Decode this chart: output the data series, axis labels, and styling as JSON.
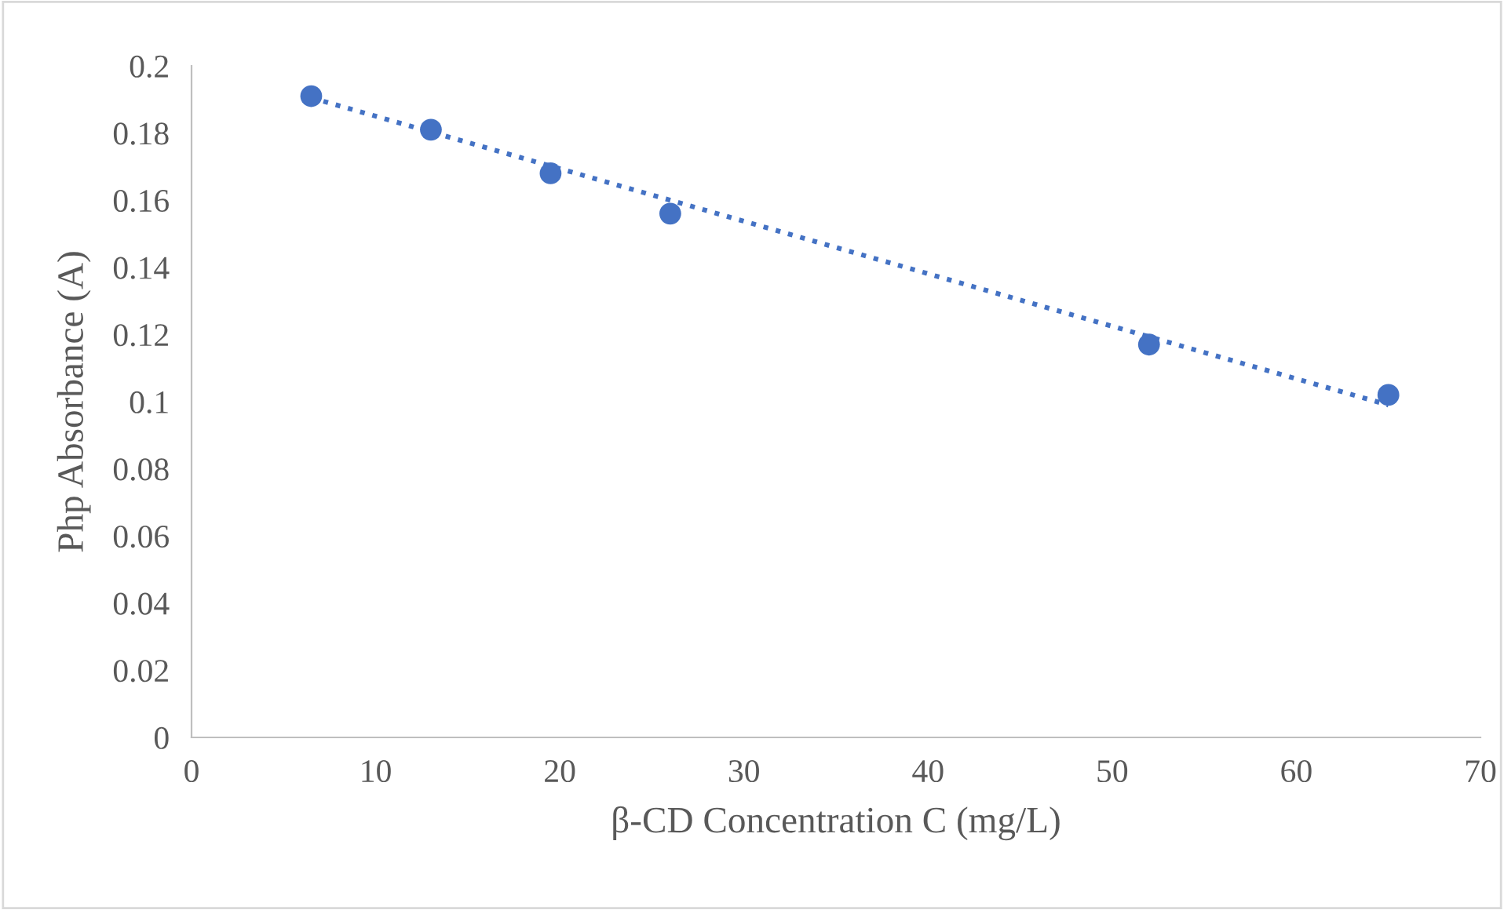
{
  "chart_data": {
    "type": "scatter",
    "xlabel": "β-CD Concentration C (mg/L)",
    "ylabel": "Php Absorbance (A)",
    "series": [
      {
        "type": "scatter",
        "color": "#4472c4",
        "marker": "circle",
        "x": [
          6.5,
          13,
          19.5,
          26,
          52,
          65
        ],
        "values": [
          0.191,
          0.181,
          0.168,
          0.156,
          0.117,
          0.102
        ]
      },
      {
        "type": "line",
        "color": "#4472c4",
        "line_style": "dotted",
        "marker": "none",
        "x": [
          6.5,
          65
        ],
        "values": [
          0.1905,
          0.099
        ]
      }
    ],
    "xlim": [
      0,
      70
    ],
    "xticks": [
      0,
      10,
      20,
      30,
      40,
      50,
      60,
      70
    ],
    "ylim": [
      0,
      0.2
    ],
    "yticks": [
      0,
      0.02,
      0.04,
      0.06,
      0.08,
      0.1,
      0.12,
      0.14,
      0.16,
      0.18,
      0.2
    ],
    "grid": false,
    "legend": false
  }
}
